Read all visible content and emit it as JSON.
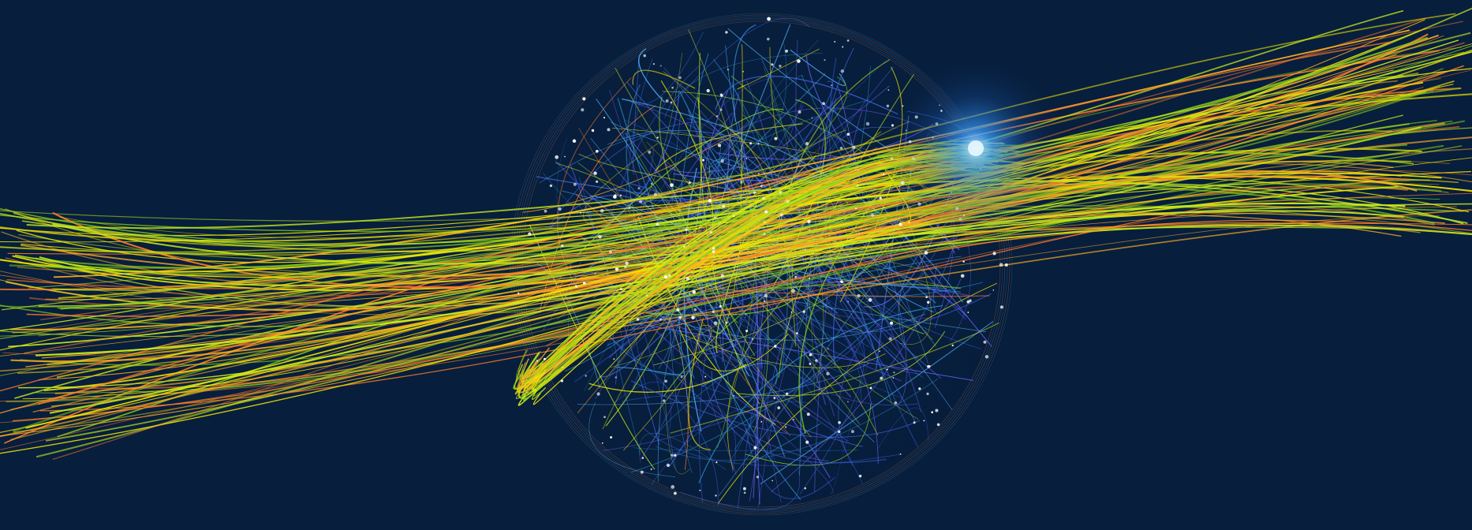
{
  "scene": {
    "subject": "network-globe",
    "palette": {
      "background": "#071e3d",
      "glow": "#2f8dff",
      "line_colors": [
        "#ff7a2a",
        "#ffb020",
        "#f2e600",
        "#c7ea1d",
        "#86d01b",
        "#54b8ff",
        "#2d9cdb",
        "#3e63e0",
        "#6c63ff"
      ]
    }
  }
}
